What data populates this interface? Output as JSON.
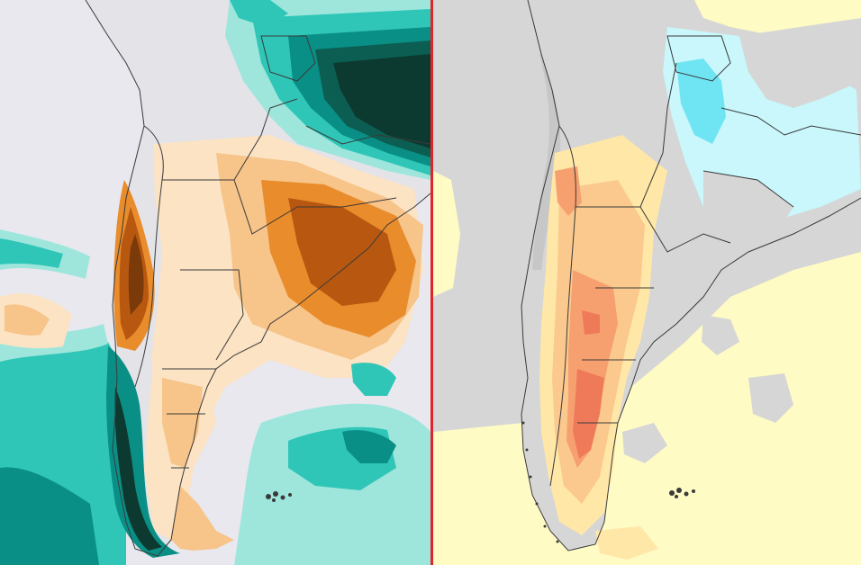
{
  "panels": [
    {
      "id": "precipitation-anomaly",
      "colors": {
        "ocean": "#e9e8ef",
        "land_base": "#d9d9d9",
        "dry_1": "#fbe3c4",
        "dry_2": "#f7c48a",
        "dry_3": "#e88c2c",
        "dry_4": "#b85810",
        "dry_5": "#7a3a0a",
        "wet_1": "#9ee6dc",
        "wet_2": "#2fc6b7",
        "wet_3": "#0a8f86",
        "wet_4": "#0c5e52",
        "wet_5": "#0d3a30",
        "border": "#3a3a3a"
      }
    },
    {
      "id": "temperature-anomaly",
      "colors": {
        "ocean": "#fffbc4",
        "land_base": "#d6d6d6",
        "warm_1": "#ffe7a8",
        "warm_2": "#fbc98e",
        "warm_3": "#f6a070",
        "warm_4": "#ef7a5a",
        "cool_1": "#c9f7fb",
        "cool_2": "#6fe4f2",
        "border": "#3a3a3a"
      }
    }
  ],
  "divider_color": "#e0262b"
}
